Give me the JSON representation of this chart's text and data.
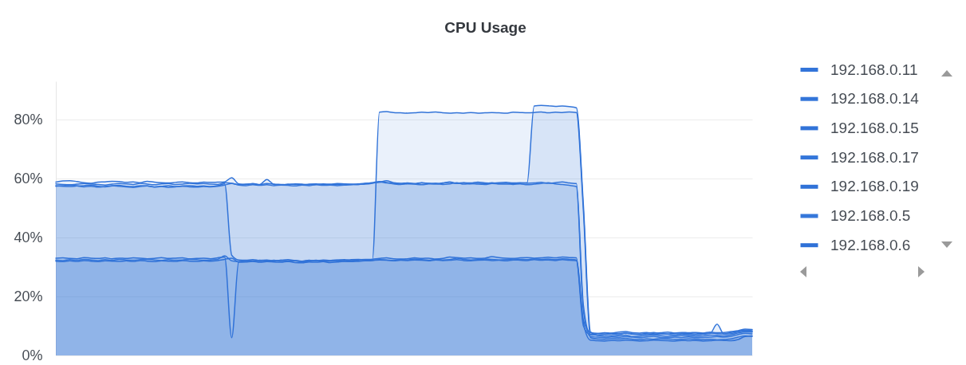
{
  "chart_data": {
    "type": "area",
    "title": "CPU Usage",
    "categories": [
      null,
      null,
      null,
      null,
      null,
      null,
      null,
      null,
      null,
      null,
      null,
      null,
      null,
      null,
      null,
      null,
      null,
      null,
      null,
      null,
      null,
      null,
      null,
      null,
      null,
      null,
      null,
      null,
      null,
      null,
      null,
      null,
      null,
      null,
      null,
      null,
      null,
      null,
      null,
      null,
      null,
      null,
      null,
      null,
      null,
      null,
      null,
      null,
      null,
      null,
      null,
      null,
      null,
      null,
      null,
      null,
      null,
      null,
      null,
      null,
      null,
      null,
      null,
      null,
      null,
      null,
      null,
      null,
      null,
      null,
      null,
      null,
      null,
      null,
      null,
      null,
      null,
      null,
      null,
      null,
      null,
      null,
      null,
      null,
      null,
      null,
      null,
      null,
      null,
      null,
      null,
      null,
      null,
      null,
      null,
      null,
      null,
      null,
      null,
      null
    ],
    "series": [
      {
        "name": "192.168.0.11",
        "color": "#3274d9",
        "values": [
          58.8,
          59.2,
          59.3,
          59.0,
          58.6,
          58.4,
          58.8,
          58.9,
          59.1,
          59.0,
          58.7,
          58.9,
          58.6,
          59.1,
          58.8,
          58.6,
          58.5,
          58.7,
          58.9,
          58.6,
          58.5,
          58.8,
          58.7,
          58.8,
          58.9,
          60.3,
          58.2,
          58.0,
          58.3,
          58.0,
          59.7,
          58.0,
          57.8,
          58.1,
          58.0,
          57.9,
          58.1,
          58.2,
          58.0,
          57.9,
          58.0,
          58.1,
          58.0,
          58.2,
          58.4,
          58.5,
          58.7,
          59.3,
          58.6,
          58.4,
          58.5,
          58.3,
          58.6,
          58.4,
          58.3,
          58.5,
          58.7,
          58.4,
          58.6,
          58.5,
          58.8,
          58.5,
          58.4,
          58.6,
          58.7,
          58.5,
          58.6,
          58.4,
          58.5,
          58.7,
          58.4,
          58.6,
          58.9,
          58.5,
          58.3,
          17.0,
          7.2,
          7.4,
          7.3,
          7.5,
          7.4,
          7.6,
          7.3,
          7.2,
          7.5,
          7.8,
          7.4,
          7.3,
          7.6,
          7.5,
          7.4,
          7.3,
          7.5,
          7.6,
          7.4,
          7.3,
          7.8,
          8.2,
          8.6,
          8.4
        ]
      },
      {
        "name": "192.168.0.14",
        "color": "#3375d9",
        "values": [
          58.2,
          58.0,
          57.9,
          58.1,
          58.3,
          58.2,
          58.0,
          57.8,
          58.1,
          58.3,
          58.2,
          58.0,
          58.4,
          58.1,
          57.9,
          58.2,
          58.3,
          58.0,
          58.1,
          58.4,
          58.2,
          58.3,
          58.1,
          58.0,
          58.6,
          58.4,
          57.9,
          58.1,
          58.2,
          57.9,
          58.3,
          58.1,
          58.0,
          57.9,
          58.2,
          58.1,
          57.9,
          58.0,
          58.2,
          58.1,
          58.3,
          58.2,
          58.1,
          58.0,
          58.3,
          58.6,
          59.0,
          58.7,
          58.3,
          58.1,
          58.4,
          58.2,
          58.5,
          58.3,
          58.1,
          58.4,
          58.9,
          58.3,
          58.5,
          58.2,
          58.4,
          58.3,
          58.6,
          58.2,
          58.1,
          58.3,
          58.4,
          58.6,
          84.6,
          84.8,
          84.7,
          84.5,
          84.6,
          84.4,
          84.0,
          51.0,
          8.0,
          6.8,
          6.5,
          6.7,
          6.6,
          6.9,
          6.4,
          6.5,
          6.8,
          7.0,
          6.7,
          6.5,
          6.6,
          6.8,
          6.7,
          6.5,
          6.6,
          6.9,
          6.8,
          6.6,
          7.0,
          7.6,
          8.0,
          7.9
        ]
      },
      {
        "name": "192.168.0.15",
        "color": "#3173d8",
        "values": [
          57.6,
          57.4,
          57.3,
          57.5,
          57.6,
          57.8,
          57.4,
          57.2,
          57.5,
          57.7,
          57.4,
          57.3,
          57.6,
          57.5,
          57.2,
          57.4,
          57.6,
          57.3,
          57.5,
          57.6,
          57.4,
          57.5,
          57.3,
          57.6,
          58.2,
          34.0,
          32.4,
          32.3,
          32.5,
          32.2,
          32.4,
          32.1,
          32.3,
          32.5,
          32.2,
          32.0,
          32.3,
          32.1,
          32.4,
          32.2,
          32.3,
          32.5,
          32.2,
          32.4,
          32.6,
          32.6,
          82.5,
          82.7,
          82.4,
          82.3,
          82.2,
          82.3,
          82.5,
          82.4,
          82.6,
          82.3,
          82.2,
          82.3,
          82.2,
          82.4,
          82.2,
          82.3,
          82.4,
          82.3,
          82.2,
          82.5,
          82.4,
          82.3,
          82.4,
          82.6,
          82.3,
          82.5,
          82.4,
          82.6,
          82.4,
          49.0,
          6.0,
          5.6,
          5.5,
          5.7,
          5.6,
          5.8,
          5.5,
          5.4,
          5.6,
          5.5,
          5.7,
          5.6,
          5.4,
          5.5,
          5.6,
          5.5,
          5.4,
          5.5,
          5.3,
          5.4,
          5.6,
          6.2,
          6.6,
          6.5
        ]
      },
      {
        "name": "192.168.0.17",
        "color": "#3476da",
        "values": [
          57.4,
          57.6,
          57.8,
          57.5,
          57.2,
          57.4,
          57.1,
          57.3,
          57.6,
          57.4,
          57.2,
          57.0,
          57.3,
          57.5,
          57.1,
          57.3,
          57.0,
          57.2,
          57.4,
          57.2,
          57.1,
          57.3,
          57.2,
          57.4,
          57.8,
          58.3,
          57.8,
          57.6,
          57.9,
          57.7,
          57.9,
          57.6,
          57.8,
          57.7,
          57.5,
          57.8,
          57.6,
          57.9,
          57.7,
          57.8,
          57.6,
          57.8,
          57.9,
          58.0,
          58.1,
          58.4,
          58.9,
          58.5,
          58.2,
          58.0,
          58.2,
          58.1,
          57.9,
          58.2,
          58.4,
          58.0,
          58.2,
          58.6,
          58.1,
          58.3,
          58.1,
          58.0,
          58.3,
          58.2,
          58.4,
          58.0,
          58.2,
          57.9,
          58.1,
          58.3,
          58.6,
          58.2,
          58.0,
          57.7,
          57.3,
          15.0,
          6.4,
          6.2,
          6.0,
          6.3,
          6.1,
          6.4,
          6.2,
          6.0,
          6.3,
          6.5,
          6.1,
          6.0,
          6.2,
          6.1,
          6.3,
          6.0,
          6.1,
          6.2,
          6.4,
          6.2,
          6.5,
          7.1,
          7.5,
          7.3
        ]
      },
      {
        "name": "192.168.0.19",
        "color": "#3072d8",
        "values": [
          33.0,
          33.1,
          32.9,
          32.8,
          33.2,
          33.0,
          32.9,
          33.1,
          32.8,
          33.0,
          32.9,
          33.1,
          33.0,
          32.8,
          32.9,
          33.2,
          32.9,
          33.0,
          33.1,
          32.8,
          32.9,
          33.0,
          32.8,
          33.1,
          33.4,
          6.0,
          31.8,
          32.2,
          32.1,
          32.3,
          32.2,
          32.0,
          32.3,
          32.1,
          32.2,
          31.9,
          32.1,
          32.3,
          32.0,
          32.2,
          32.4,
          32.3,
          32.5,
          32.6,
          32.4,
          32.6,
          32.9,
          33.1,
          32.8,
          32.7,
          32.8,
          33.1,
          32.9,
          33.0,
          32.7,
          32.9,
          33.4,
          33.2,
          33.0,
          33.1,
          32.9,
          33.0,
          33.5,
          33.2,
          33.0,
          32.9,
          33.1,
          33.2,
          33.0,
          33.1,
          33.3,
          33.1,
          33.4,
          33.2,
          33.1,
          12.0,
          7.8,
          7.5,
          7.7,
          7.6,
          7.9,
          8.1,
          7.7,
          7.6,
          7.8,
          7.5,
          7.7,
          7.9,
          7.6,
          7.8,
          7.7,
          7.8,
          7.6,
          7.9,
          7.7,
          7.8,
          8.1,
          8.4,
          8.9,
          8.8
        ]
      },
      {
        "name": "192.168.0.5",
        "color": "#3577da",
        "values": [
          32.4,
          32.2,
          32.5,
          32.3,
          32.6,
          32.4,
          32.2,
          32.5,
          32.3,
          32.6,
          32.4,
          32.3,
          32.5,
          32.6,
          32.4,
          32.2,
          32.5,
          32.3,
          32.4,
          32.6,
          32.5,
          32.3,
          32.4,
          32.6,
          33.8,
          32.1,
          31.8,
          31.9,
          32.0,
          31.8,
          32.0,
          32.3,
          31.9,
          31.8,
          32.1,
          31.7,
          31.9,
          32.2,
          31.8,
          32.0,
          32.1,
          31.9,
          32.2,
          32.0,
          32.1,
          32.3,
          32.5,
          32.4,
          32.2,
          32.6,
          32.4,
          32.7,
          32.5,
          32.3,
          32.6,
          32.4,
          32.5,
          33.0,
          32.6,
          32.4,
          32.5,
          32.7,
          32.6,
          32.4,
          32.5,
          32.7,
          32.6,
          32.5,
          32.8,
          32.6,
          32.7,
          32.5,
          32.8,
          32.6,
          32.4,
          10.0,
          7.0,
          6.9,
          7.1,
          7.3,
          7.0,
          7.6,
          7.2,
          7.0,
          7.3,
          7.1,
          7.4,
          7.2,
          7.0,
          7.3,
          7.1,
          7.0,
          7.2,
          7.4,
          10.6,
          7.2,
          7.4,
          7.9,
          8.3,
          8.1
        ]
      },
      {
        "name": "192.168.0.6",
        "color": "#2f71d7",
        "values": [
          32.0,
          31.8,
          32.1,
          31.9,
          32.2,
          32.0,
          31.8,
          32.1,
          32.0,
          31.9,
          32.1,
          31.9,
          32.2,
          32.0,
          31.8,
          32.1,
          32.0,
          31.9,
          32.2,
          32.0,
          31.9,
          32.1,
          32.0,
          32.2,
          32.6,
          33.0,
          31.6,
          31.7,
          31.9,
          31.6,
          31.8,
          31.7,
          31.6,
          31.9,
          31.5,
          31.4,
          31.7,
          31.6,
          31.8,
          31.5,
          31.7,
          31.9,
          31.8,
          32.0,
          32.1,
          32.2,
          32.4,
          32.3,
          32.1,
          32.3,
          32.2,
          32.4,
          32.3,
          32.1,
          32.4,
          32.2,
          32.3,
          32.5,
          32.2,
          32.1,
          32.3,
          32.4,
          32.2,
          32.3,
          32.1,
          32.4,
          32.3,
          32.2,
          32.5,
          32.3,
          32.4,
          32.2,
          32.5,
          32.3,
          32.2,
          11.0,
          5.2,
          5.0,
          4.9,
          5.1,
          5.0,
          5.2,
          5.1,
          4.9,
          5.0,
          5.2,
          5.1,
          5.0,
          4.9,
          5.1,
          5.0,
          5.1,
          4.9,
          5.0,
          5.2,
          5.1,
          5.0,
          5.4,
          6.4,
          6.6
        ]
      }
    ],
    "ylim": [
      0,
      93
    ],
    "yticks": [
      {
        "value": 0,
        "label": "0%"
      },
      {
        "value": 20,
        "label": "20%"
      },
      {
        "value": 40,
        "label": "40%"
      },
      {
        "value": 60,
        "label": "60%"
      },
      {
        "value": 80,
        "label": "80%"
      }
    ],
    "grid": "y",
    "legend": "top right"
  }
}
